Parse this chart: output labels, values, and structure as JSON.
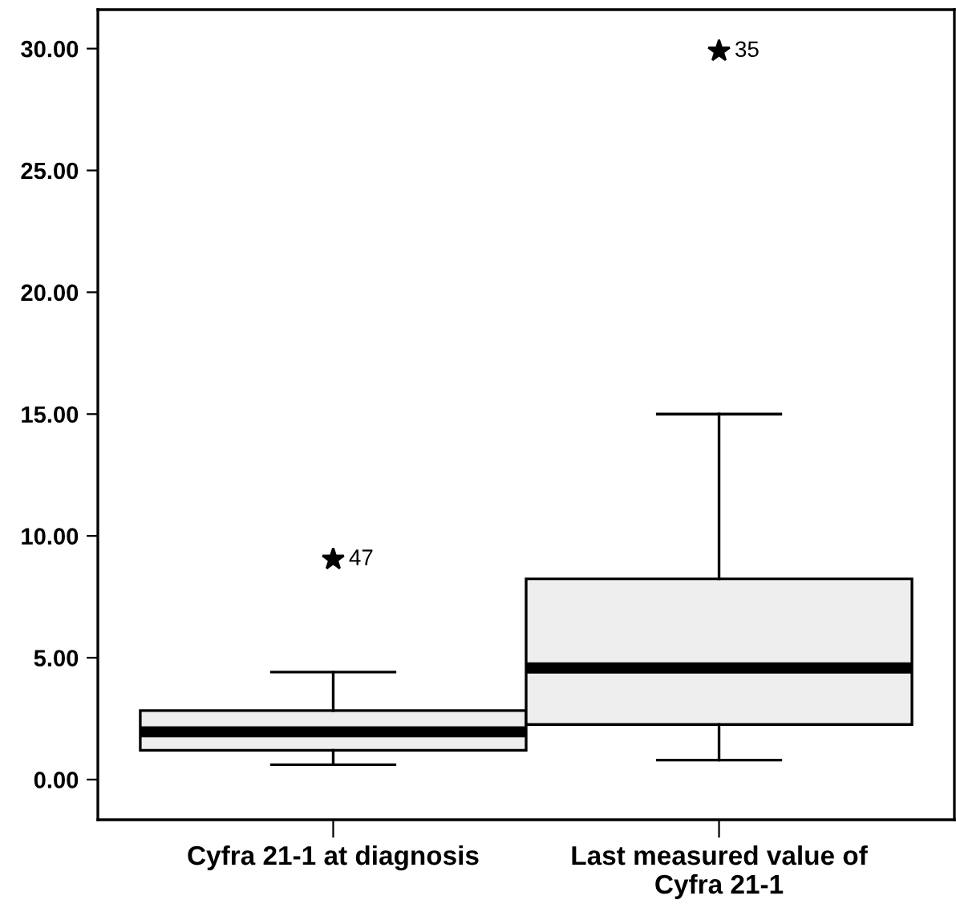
{
  "chart_data": {
    "type": "box",
    "categories": [
      "Cyfra 21-1 at diagnosis",
      "Last measured value of\nCyfra 21-1"
    ],
    "color": "#eeeeee",
    "boxes": [
      {
        "low": 0.61,
        "q1": 1.2,
        "median": 1.96,
        "q3": 2.83,
        "high": 4.41,
        "outliers": [
          9.04
        ]
      },
      {
        "low": 0.8,
        "q1": 2.26,
        "median": 4.58,
        "q3": 8.24,
        "high": 15.0,
        "outliers": [
          29.9
        ]
      }
    ],
    "marker": "star",
    "annotations": [
      "47",
      "35"
    ],
    "ylim": [
      -1.65,
      31.6
    ],
    "yticks": [
      {
        "value": 0,
        "label": "0.00"
      },
      {
        "value": 5,
        "label": "5.00"
      },
      {
        "value": 10,
        "label": "10.00"
      },
      {
        "value": 15,
        "label": "15.00"
      },
      {
        "value": 20,
        "label": "20.00"
      },
      {
        "value": 25,
        "label": "25.00"
      },
      {
        "value": 30,
        "label": "30.00"
      }
    ],
    "grid": false
  }
}
